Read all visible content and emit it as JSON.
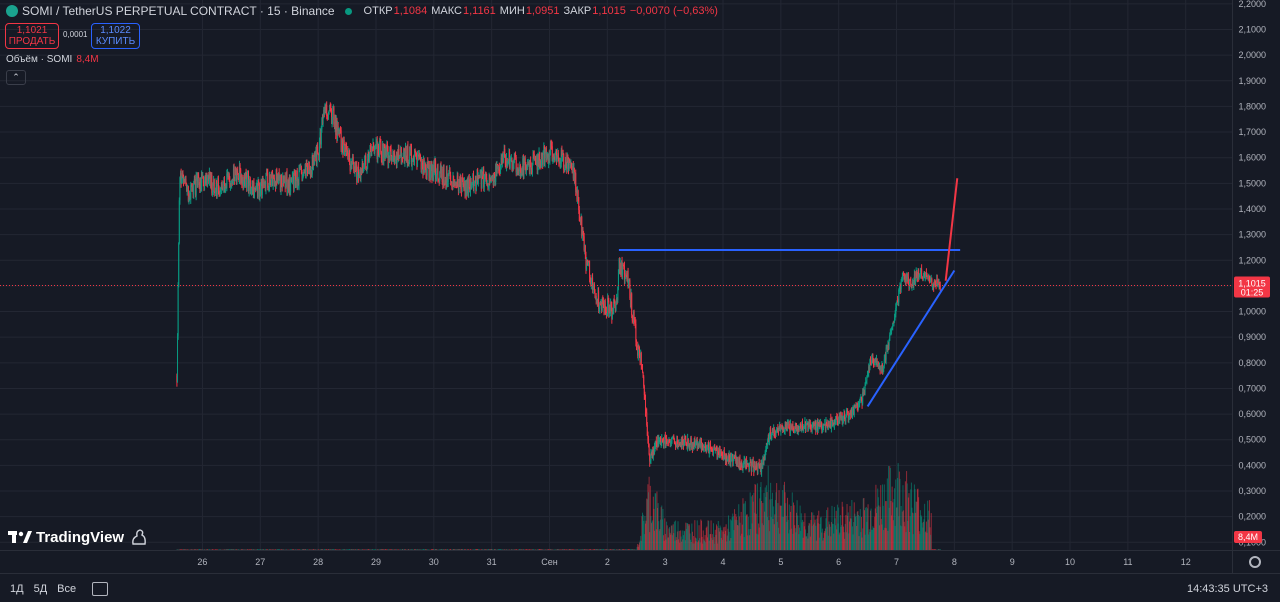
{
  "header": {
    "symbol": "SOMI / TetherUS PERPETUAL CONTRACT · 15 · Binance",
    "open_label": "ОТКР",
    "open_value": "1,1084",
    "high_label": "МАКС",
    "high_value": "1,1161",
    "low_label": "МИН",
    "low_value": "1,0951",
    "close_label": "ЗАКР",
    "close_value": "1,1015",
    "change": "−0,0070 (−0,63%)"
  },
  "trade": {
    "sell_price": "1,1021",
    "sell_label": "ПРОДАТЬ",
    "spread": "0,0001",
    "buy_price": "1,1022",
    "buy_label": "КУПИТЬ"
  },
  "volume_indicator": {
    "label": "Объём · SOMI",
    "value": "8,4M"
  },
  "price_tag": {
    "price": "1,1015",
    "countdown": "01:25"
  },
  "volume_tag": "8,4M",
  "branding": "TradingView",
  "bottom_bar": {
    "ranges": [
      "1Д",
      "5Д",
      "Все"
    ],
    "clock": "14:43:35 UTC+3"
  },
  "colors": {
    "up": "#089981",
    "down": "#f23645",
    "drawing_blue": "#2962ff",
    "drawing_red": "#f23645",
    "background": "#161a25"
  },
  "chart_data": {
    "type": "candlestick",
    "yticks": [
      "2,2000",
      "2,1000",
      "2,0000",
      "1,9000",
      "1,8000",
      "1,7000",
      "1,6000",
      "1,5000",
      "1,4000",
      "1,3000",
      "1,2000",
      "1,1000",
      "1,0000",
      "0,9000",
      "0,8000",
      "0,7000",
      "0,6000",
      "0,5000",
      "0,4000",
      "0,3000",
      "0,2000",
      "0,1000"
    ],
    "ytick_values": [
      2.2,
      2.1,
      2.0,
      1.9,
      1.8,
      1.7,
      1.6,
      1.5,
      1.4,
      1.3,
      1.2,
      1.1,
      1.0,
      0.9,
      0.8,
      0.7,
      0.6,
      0.5,
      0.4,
      0.3,
      0.2,
      0.1
    ],
    "xticks": [
      "26",
      "27",
      "28",
      "29",
      "30",
      "31",
      "Сен",
      "2",
      "3",
      "4",
      "5",
      "6",
      "7",
      "8",
      "9",
      "10",
      "11",
      "12"
    ],
    "xtick_days": [
      26,
      27,
      28,
      29,
      30,
      31,
      32,
      33,
      34,
      35,
      36,
      37,
      38,
      39,
      40,
      41,
      42,
      43
    ],
    "xlim_days": [
      22.5,
      43.8
    ],
    "ylim": [
      0.07,
      2.215
    ],
    "price_path": [
      [
        25.55,
        0.75
      ],
      [
        25.6,
        1.55
      ],
      [
        25.75,
        1.45
      ],
      [
        26.0,
        1.52
      ],
      [
        26.3,
        1.48
      ],
      [
        26.6,
        1.55
      ],
      [
        26.9,
        1.47
      ],
      [
        27.2,
        1.52
      ],
      [
        27.5,
        1.5
      ],
      [
        27.8,
        1.54
      ],
      [
        28.0,
        1.62
      ],
      [
        28.1,
        1.8
      ],
      [
        28.25,
        1.76
      ],
      [
        28.45,
        1.62
      ],
      [
        28.7,
        1.52
      ],
      [
        28.95,
        1.64
      ],
      [
        29.3,
        1.6
      ],
      [
        29.5,
        1.62
      ],
      [
        29.8,
        1.57
      ],
      [
        30.1,
        1.54
      ],
      [
        30.3,
        1.52
      ],
      [
        30.5,
        1.48
      ],
      [
        30.8,
        1.52
      ],
      [
        31.0,
        1.51
      ],
      [
        31.2,
        1.6
      ],
      [
        31.5,
        1.56
      ],
      [
        31.8,
        1.59
      ],
      [
        32.0,
        1.62
      ],
      [
        32.4,
        1.56
      ],
      [
        32.5,
        1.4
      ],
      [
        32.6,
        1.22
      ],
      [
        32.8,
        1.06
      ],
      [
        33.05,
        1.0
      ],
      [
        33.15,
        1.05
      ],
      [
        33.2,
        1.18
      ],
      [
        33.35,
        1.12
      ],
      [
        33.5,
        0.88
      ],
      [
        33.6,
        0.78
      ],
      [
        33.72,
        0.42
      ],
      [
        33.85,
        0.49
      ],
      [
        34.0,
        0.5
      ],
      [
        34.3,
        0.49
      ],
      [
        34.6,
        0.48
      ],
      [
        34.9,
        0.45
      ],
      [
        35.2,
        0.42
      ],
      [
        35.4,
        0.4
      ],
      [
        35.65,
        0.39
      ],
      [
        35.8,
        0.52
      ],
      [
        36.0,
        0.54
      ],
      [
        36.3,
        0.55
      ],
      [
        36.6,
        0.55
      ],
      [
        36.9,
        0.57
      ],
      [
        37.2,
        0.6
      ],
      [
        37.4,
        0.66
      ],
      [
        37.55,
        0.82
      ],
      [
        37.75,
        0.78
      ],
      [
        37.95,
        0.98
      ],
      [
        38.1,
        1.14
      ],
      [
        38.25,
        1.11
      ],
      [
        38.4,
        1.16
      ],
      [
        38.55,
        1.12
      ],
      [
        38.75,
        1.1
      ]
    ],
    "volume_path": [
      [
        25.55,
        0.01
      ],
      [
        33.5,
        0.01
      ],
      [
        33.72,
        0.9
      ],
      [
        34.0,
        0.35
      ],
      [
        35.0,
        0.3
      ],
      [
        35.8,
        0.9
      ],
      [
        36.5,
        0.4
      ],
      [
        37.5,
        0.6
      ],
      [
        38.0,
        1.0
      ],
      [
        38.6,
        0.5
      ]
    ],
    "drawings": [
      {
        "kind": "horizontal-ray",
        "color": "#2962ff",
        "from": [
          33.2,
          1.24
        ],
        "to": [
          39.1,
          1.24
        ]
      },
      {
        "kind": "trendline",
        "color": "#2962ff",
        "from": [
          37.5,
          0.63
        ],
        "to": [
          39.0,
          1.16
        ]
      },
      {
        "kind": "trendline",
        "color": "#f23645",
        "from": [
          38.85,
          1.12
        ],
        "to": [
          39.05,
          1.52
        ]
      }
    ],
    "last_price": 1.1015
  }
}
